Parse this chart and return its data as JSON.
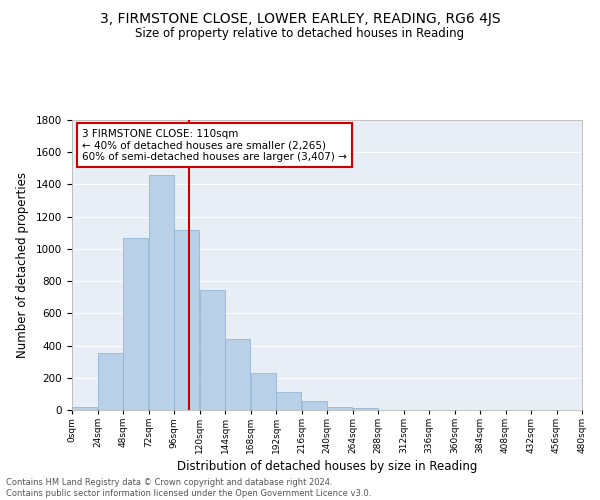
{
  "title": "3, FIRMSTONE CLOSE, LOWER EARLEY, READING, RG6 4JS",
  "subtitle": "Size of property relative to detached houses in Reading",
  "xlabel": "Distribution of detached houses by size in Reading",
  "ylabel": "Number of detached properties",
  "bar_color": "#b8d0e8",
  "bar_edge_color": "#8ab0d0",
  "background_color": "#e8eef5",
  "bin_edges": [
    0,
    24,
    48,
    72,
    96,
    120,
    144,
    168,
    192,
    216,
    240,
    264,
    288,
    312,
    336,
    360,
    384,
    408,
    432,
    456,
    480
  ],
  "bar_heights": [
    20,
    355,
    1065,
    1460,
    1120,
    745,
    440,
    230,
    110,
    55,
    20,
    10,
    0,
    0,
    0,
    0,
    0,
    0,
    0,
    0
  ],
  "vline_x": 110,
  "vline_color": "#cc0000",
  "annotation_title": "3 FIRMSTONE CLOSE: 110sqm",
  "annotation_line1": "← 40% of detached houses are smaller (2,265)",
  "annotation_line2": "60% of semi-detached houses are larger (3,407) →",
  "footer_line1": "Contains HM Land Registry data © Crown copyright and database right 2024.",
  "footer_line2": "Contains public sector information licensed under the Open Government Licence v3.0.",
  "xlim": [
    0,
    480
  ],
  "ylim": [
    0,
    1800
  ],
  "yticks": [
    0,
    200,
    400,
    600,
    800,
    1000,
    1200,
    1400,
    1600,
    1800
  ],
  "xtick_labels": [
    "0sqm",
    "24sqm",
    "48sqm",
    "72sqm",
    "96sqm",
    "120sqm",
    "144sqm",
    "168sqm",
    "192sqm",
    "216sqm",
    "240sqm",
    "264sqm",
    "288sqm",
    "312sqm",
    "336sqm",
    "360sqm",
    "384sqm",
    "408sqm",
    "432sqm",
    "456sqm",
    "480sqm"
  ]
}
